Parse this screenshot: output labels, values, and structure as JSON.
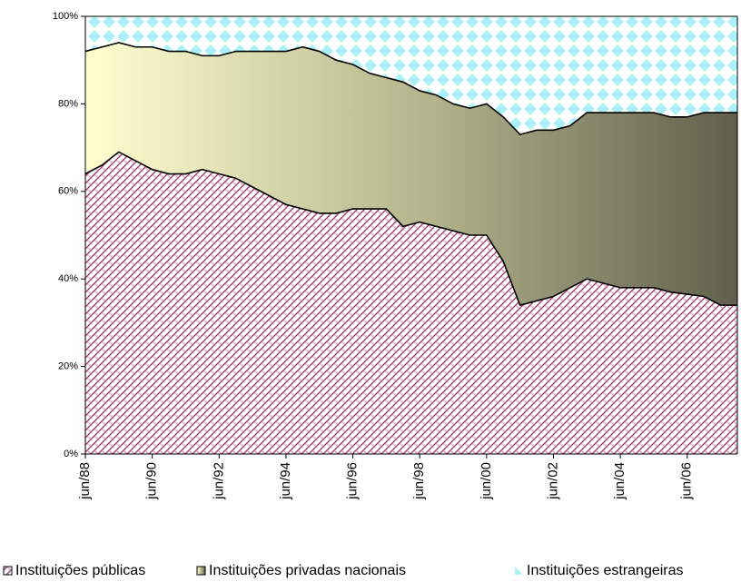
{
  "chart_data": {
    "type": "stacked_area",
    "categories": [
      "jun/88",
      null,
      null,
      null,
      "jun/90",
      null,
      null,
      null,
      "jun/92",
      null,
      null,
      null,
      "jun/94",
      null,
      null,
      null,
      "jun/96",
      null,
      null,
      null,
      "jun/98",
      null,
      null,
      null,
      "jun/00",
      null,
      null,
      null,
      "jun/02",
      null,
      null,
      null,
      "jun/04",
      null,
      null,
      null,
      "jun/06",
      null,
      null,
      null
    ],
    "series": [
      {
        "name": "Instituições públicas",
        "color": "#a0406e",
        "values": [
          64,
          66,
          69,
          67,
          65,
          64,
          64,
          65,
          64,
          63,
          61,
          59,
          57,
          56,
          55,
          55,
          56,
          56,
          56,
          52,
          53,
          52,
          51,
          50,
          50,
          44,
          34,
          35,
          36,
          38,
          40,
          39,
          38,
          38,
          38,
          37,
          36.5,
          36,
          34,
          34
        ]
      },
      {
        "name": "Instituições privadas nacionais",
        "color": "#8a8a6a",
        "values": [
          28,
          27,
          25,
          26,
          28,
          28,
          28,
          26,
          27,
          29,
          31,
          33,
          35,
          37,
          37,
          35,
          33,
          31,
          30,
          33,
          30,
          30,
          29,
          29,
          30,
          33,
          39,
          39,
          38,
          37,
          38,
          39,
          40,
          40,
          40,
          40,
          40.5,
          42,
          44,
          44
        ]
      },
      {
        "name": "Instituições estrangeiras",
        "color": "#aaf2f7",
        "values": [
          8,
          7,
          6,
          7,
          7,
          8,
          8,
          9,
          9,
          8,
          8,
          8,
          8,
          7,
          8,
          10,
          11,
          13,
          14,
          15,
          17,
          18,
          20,
          21,
          20,
          23,
          27,
          26,
          26,
          25,
          22,
          22,
          22,
          22,
          22,
          23,
          23,
          22,
          22,
          22
        ]
      }
    ],
    "ylim": [
      0,
      100
    ],
    "yticks": [
      {
        "value": 0,
        "label": "0%"
      },
      {
        "value": 20,
        "label": "20%"
      },
      {
        "value": 40,
        "label": "40%"
      },
      {
        "value": 60,
        "label": "60%"
      },
      {
        "value": 80,
        "label": "80%"
      },
      {
        "value": 100,
        "label": "100%"
      }
    ]
  }
}
